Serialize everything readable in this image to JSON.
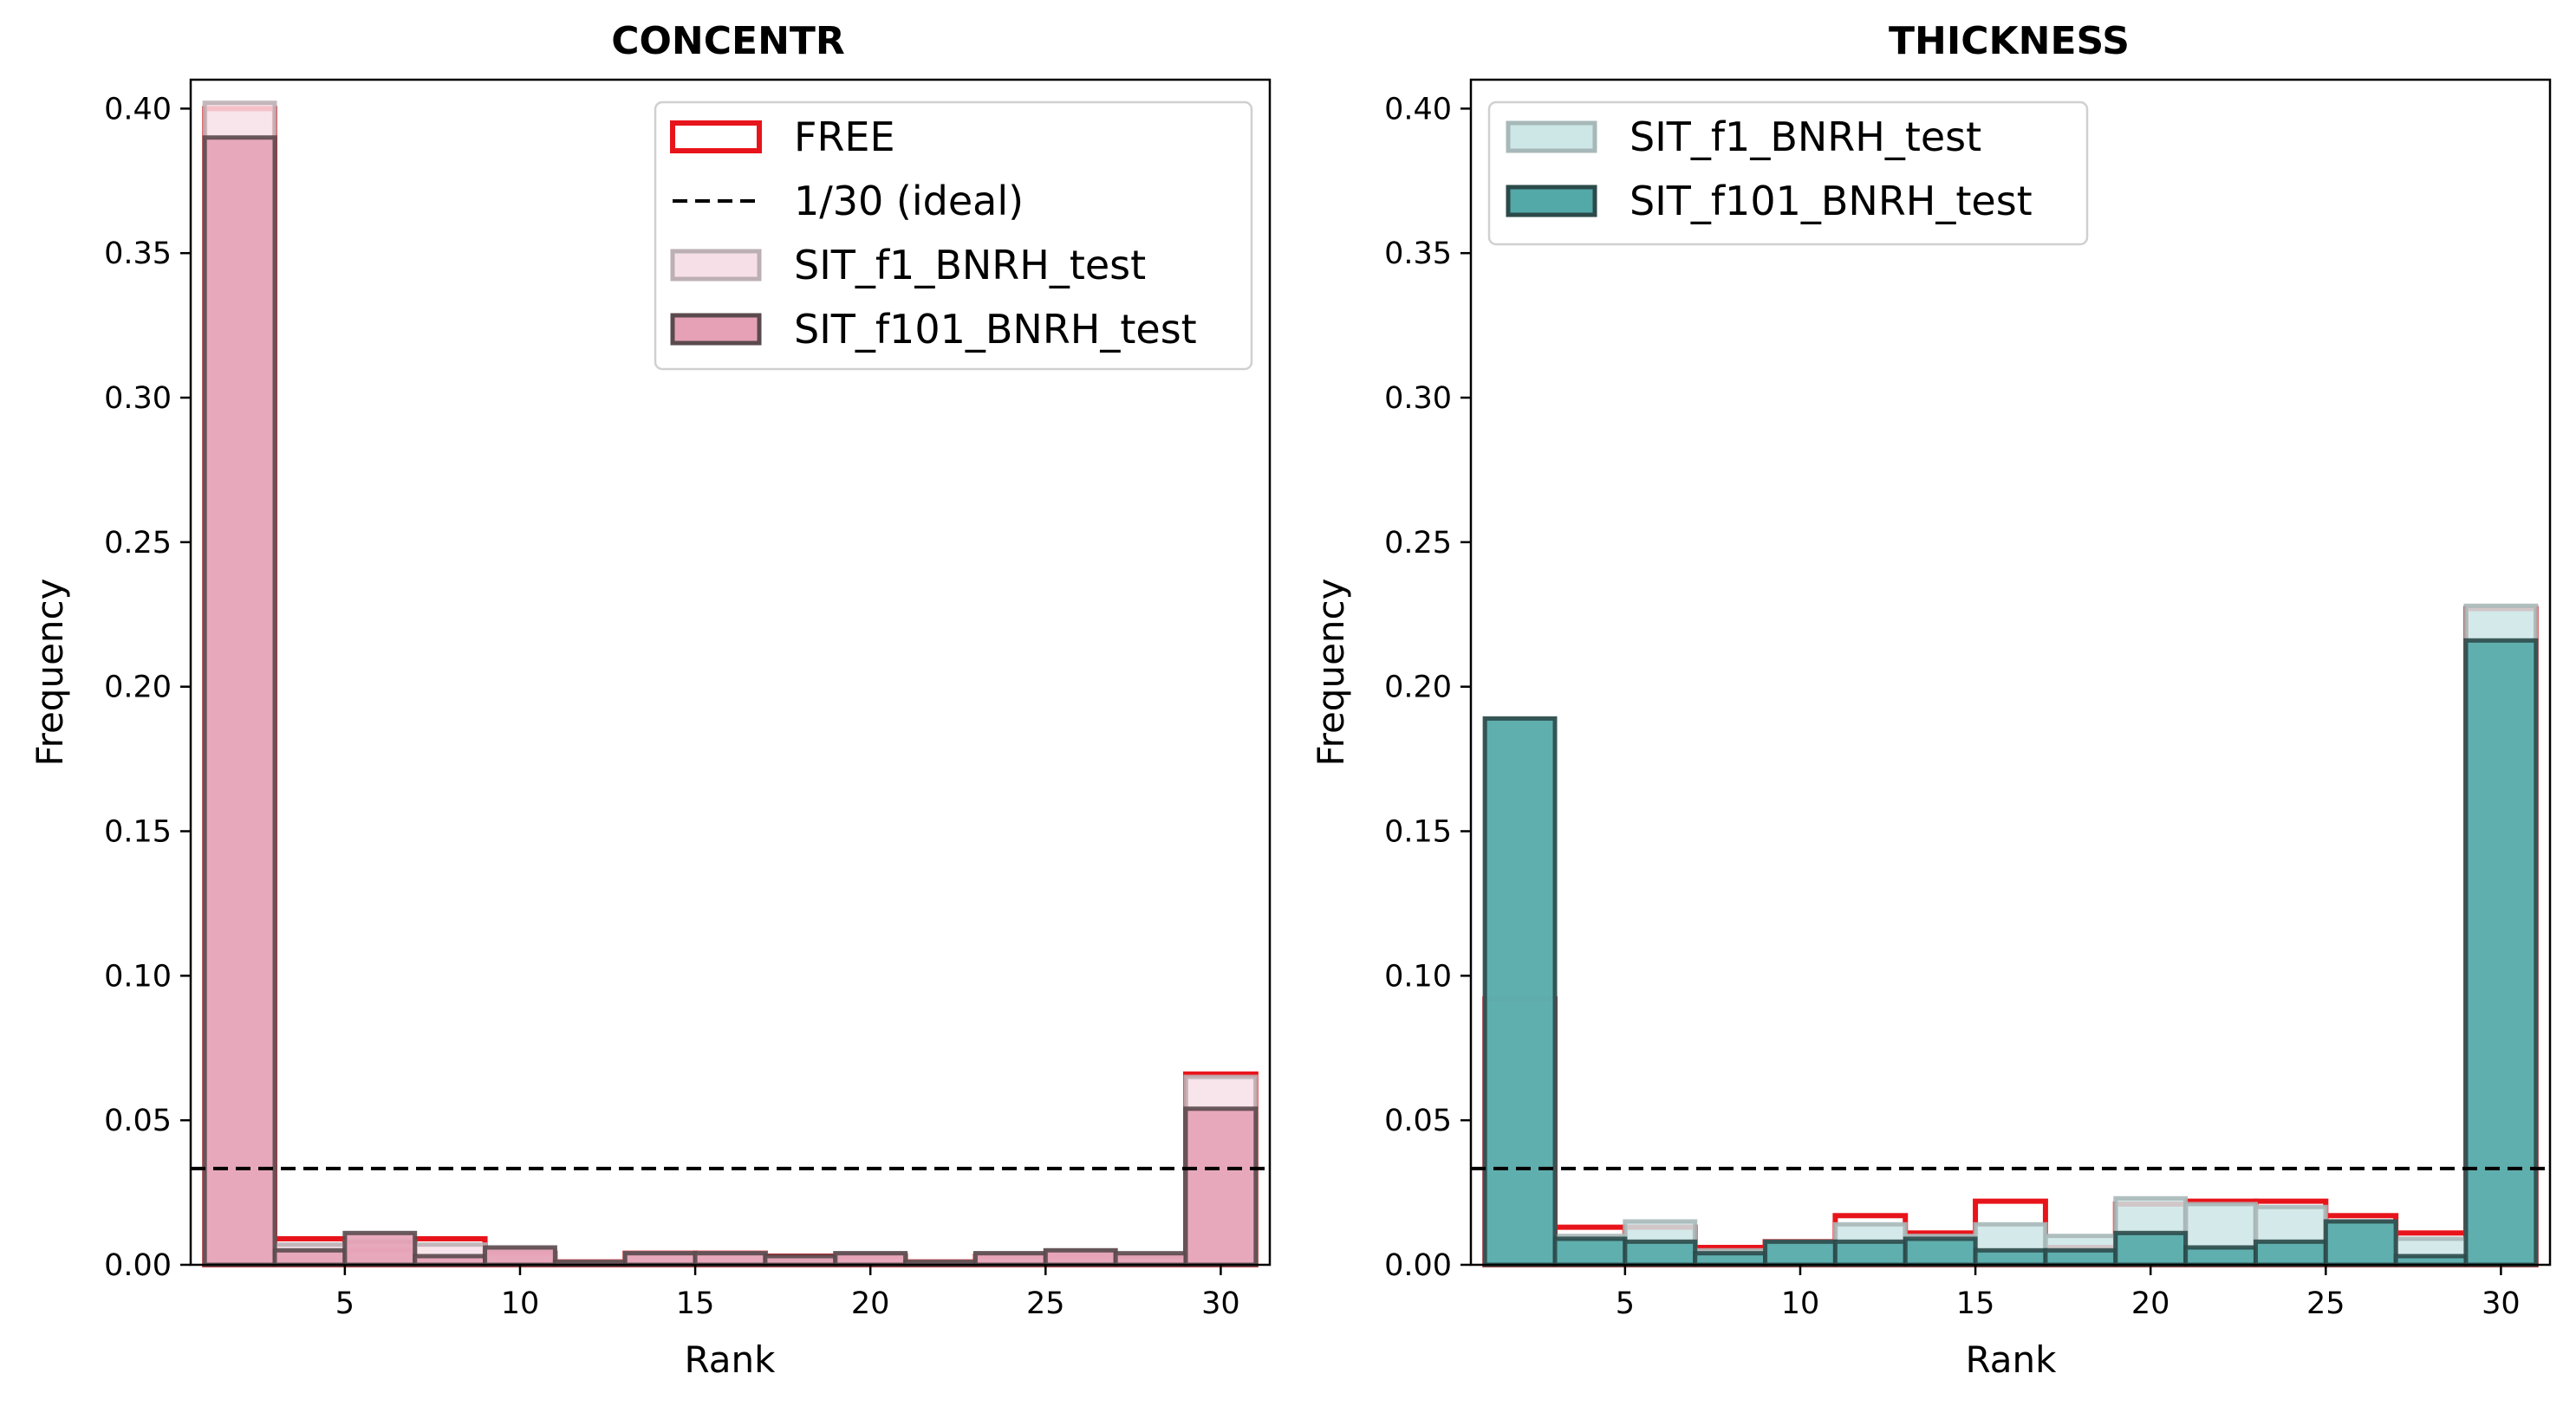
{
  "chart_data": [
    {
      "type": "bar",
      "title": "CONCENTR",
      "xlabel": "Rank",
      "ylabel": "Frequency",
      "xlim": [
        0.6,
        31.4
      ],
      "ylim": [
        0.0,
        0.41
      ],
      "xticks": [
        5,
        10,
        15,
        20,
        25,
        30
      ],
      "yticks": [
        0.0,
        0.05,
        0.1,
        0.15,
        0.2,
        0.25,
        0.3,
        0.35,
        0.4
      ],
      "bin_edges": [
        1,
        3,
        5,
        7,
        9,
        11,
        13,
        15,
        17,
        19,
        21,
        23,
        25,
        27,
        29,
        31
      ],
      "legend_position": "upper right",
      "reference_line": {
        "label": "1/30 (ideal)",
        "y": 0.0333,
        "style": "dashed",
        "color": "#000000"
      },
      "series": [
        {
          "name": "FREE",
          "style": "outline",
          "edge_color": "#e8141b",
          "values": [
            0.4,
            0.009,
            0.005,
            0.009,
            0.004,
            0.001,
            0.004,
            0.004,
            0.003,
            0.003,
            0.001,
            0.003,
            0.003,
            0.003,
            0.066
          ]
        },
        {
          "name": "SIT_f1_BNRH_test",
          "style": "filled",
          "fill_color": "#f7dfe7",
          "edge_color": "#bdb0b5",
          "values": [
            0.402,
            0.007,
            0.008,
            0.007,
            0.005,
            0.001,
            0.004,
            0.004,
            0.002,
            0.004,
            0.001,
            0.004,
            0.005,
            0.003,
            0.065
          ]
        },
        {
          "name": "SIT_f101_BNRH_test",
          "style": "filled",
          "fill_color": "#e6a1b6",
          "edge_color": "#5a4a4e",
          "values": [
            0.39,
            0.005,
            0.011,
            0.003,
            0.006,
            0.001,
            0.004,
            0.004,
            0.003,
            0.004,
            0.001,
            0.004,
            0.005,
            0.004,
            0.054
          ]
        }
      ]
    },
    {
      "type": "bar",
      "title": "THICKNESS",
      "xlabel": "Rank",
      "ylabel": "Frequency",
      "xlim": [
        0.6,
        31.4
      ],
      "ylim": [
        0.0,
        0.41
      ],
      "xticks": [
        5,
        10,
        15,
        20,
        25,
        30
      ],
      "yticks": [
        0.0,
        0.05,
        0.1,
        0.15,
        0.2,
        0.25,
        0.3,
        0.35,
        0.4
      ],
      "bin_edges": [
        1,
        3,
        5,
        7,
        9,
        11,
        13,
        15,
        17,
        19,
        21,
        23,
        25,
        27,
        29,
        31
      ],
      "legend_position": "upper left",
      "reference_line": {
        "y": 0.0333,
        "style": "dashed",
        "color": "#000000"
      },
      "series": [
        {
          "name": "FREE",
          "style": "outline",
          "edge_color": "#e8141b",
          "in_legend": false,
          "values": [
            0.092,
            0.013,
            0.013,
            0.006,
            0.008,
            0.017,
            0.011,
            0.022,
            0.006,
            0.021,
            0.022,
            0.022,
            0.017,
            0.011,
            0.227
          ]
        },
        {
          "name": "SIT_f1_BNRH_test",
          "style": "filled",
          "fill_color": "#cde6e6",
          "edge_color": "#a8b8b8",
          "values": [
            0.189,
            0.01,
            0.015,
            0.005,
            0.008,
            0.014,
            0.01,
            0.014,
            0.01,
            0.023,
            0.021,
            0.02,
            0.015,
            0.009,
            0.228
          ]
        },
        {
          "name": "SIT_f101_BNRH_test",
          "style": "filled",
          "fill_color": "#53a8a8",
          "edge_color": "#2c4a4a",
          "values": [
            0.189,
            0.009,
            0.008,
            0.004,
            0.008,
            0.008,
            0.009,
            0.005,
            0.005,
            0.011,
            0.006,
            0.008,
            0.015,
            0.003,
            0.216
          ]
        }
      ]
    }
  ]
}
